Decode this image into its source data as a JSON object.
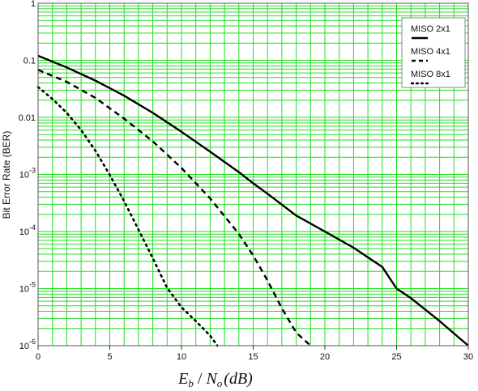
{
  "chart_data": {
    "type": "line",
    "title": "",
    "xlabel": "E_b / N_o (dB)",
    "xlabel_parts": {
      "e": "E",
      "e_sub": "b",
      "slash": " / ",
      "n": "N",
      "n_sub": "o",
      "unit": "(dB)"
    },
    "ylabel": "Bit Error Rate (BER)",
    "xlim": [
      0,
      30
    ],
    "ylim": [
      1e-06,
      1
    ],
    "yscale": "log",
    "grid": true,
    "grid_color": "#22dd22",
    "background": "#ffffff",
    "legend_position": "top-right",
    "x_ticks": [
      {
        "value": 0,
        "label": "0"
      },
      {
        "value": 5,
        "label": "5"
      },
      {
        "value": 10,
        "label": "10"
      },
      {
        "value": 15,
        "label": "15"
      },
      {
        "value": 20,
        "label": "20"
      },
      {
        "value": 25,
        "label": "25"
      },
      {
        "value": 30,
        "label": "30"
      }
    ],
    "y_ticks": [
      {
        "value": 1,
        "base": "1",
        "exp": ""
      },
      {
        "value": 0.1,
        "base": "0.1",
        "exp": ""
      },
      {
        "value": 0.01,
        "base": "0.01",
        "exp": ""
      },
      {
        "value": 0.001,
        "base": "10",
        "exp": "-3"
      },
      {
        "value": 0.0001,
        "base": "10",
        "exp": "-4"
      },
      {
        "value": 1e-05,
        "base": "10",
        "exp": "-5"
      },
      {
        "value": 1e-06,
        "base": "10",
        "exp": "-6"
      }
    ],
    "series": [
      {
        "name": "MISO 2x1",
        "style": "solid",
        "color": "#000000",
        "x": [
          0,
          2,
          4,
          6,
          8,
          10,
          12,
          14,
          15,
          16,
          18,
          20,
          22,
          24,
          25,
          26,
          28,
          30
        ],
        "y": [
          0.12,
          0.075,
          0.044,
          0.024,
          0.012,
          0.0056,
          0.0025,
          0.0011,
          0.0007,
          0.00046,
          0.00019,
          0.0001,
          5.2e-05,
          2.4e-05,
          1e-05,
          6.8e-06,
          2.7e-06,
          1e-06
        ]
      },
      {
        "name": "MISO 4x1",
        "style": "dashed",
        "color": "#000000",
        "x": [
          0,
          2,
          4,
          6,
          8,
          10,
          12,
          14,
          15,
          16,
          17,
          18,
          19
        ],
        "y": [
          0.068,
          0.042,
          0.022,
          0.0095,
          0.0038,
          0.0013,
          0.00038,
          9.1e-05,
          3.8e-05,
          1.38e-05,
          4.5e-06,
          1.7e-06,
          1e-06
        ]
      },
      {
        "name": "MISO 8x1",
        "style": "dotted",
        "color": "#000000",
        "x": [
          0,
          1,
          2,
          3,
          4,
          5,
          6,
          7,
          8,
          9,
          10,
          11,
          12,
          12.5
        ],
        "y": [
          0.034,
          0.021,
          0.012,
          0.006,
          0.0026,
          0.00098,
          0.00034,
          0.000108,
          3.4e-05,
          1.03e-05,
          4.7e-06,
          2.7e-06,
          1.5e-06,
          1e-06
        ]
      }
    ]
  }
}
